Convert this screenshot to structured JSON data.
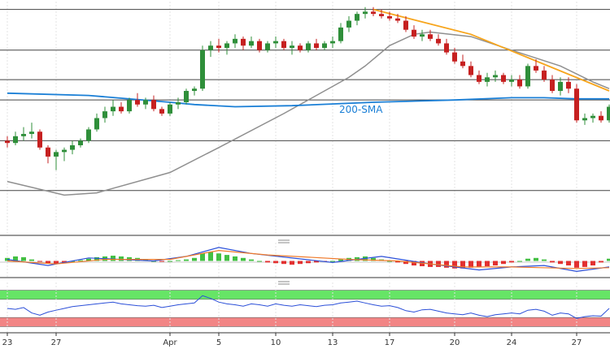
{
  "chart_data": [
    {
      "type": "candlestick",
      "panel": "price",
      "x_ticks": [
        "23",
        "27",
        "Apr",
        "5",
        "10",
        "13",
        "17",
        "20",
        "24",
        "27"
      ],
      "y_range": [
        0,
        100
      ],
      "horizontal_levels": [
        98,
        80,
        67,
        58,
        40,
        18
      ],
      "ohlc": [
        [
          40,
          42,
          37,
          39
        ],
        [
          39,
          44,
          38,
          42
        ],
        [
          42,
          46,
          40,
          43
        ],
        [
          43,
          48,
          41,
          44
        ],
        [
          44,
          45,
          36,
          37
        ],
        [
          37,
          38,
          30,
          33
        ],
        [
          33,
          36,
          27,
          35
        ],
        [
          35,
          37,
          31,
          36
        ],
        [
          36,
          40,
          34,
          38
        ],
        [
          38,
          41,
          37,
          40
        ],
        [
          40,
          46,
          39,
          45
        ],
        [
          45,
          52,
          44,
          50
        ],
        [
          50,
          55,
          48,
          53
        ],
        [
          53,
          58,
          51,
          55
        ],
        [
          55,
          57,
          52,
          53
        ],
        [
          53,
          59,
          52,
          58
        ],
        [
          58,
          61,
          55,
          56
        ],
        [
          56,
          59,
          54,
          58
        ],
        [
          58,
          60,
          53,
          54
        ],
        [
          54,
          55,
          51,
          52
        ],
        [
          52,
          57,
          51,
          56
        ],
        [
          56,
          59,
          54,
          57
        ],
        [
          57,
          63,
          56,
          62
        ],
        [
          62,
          64,
          60,
          63
        ],
        [
          63,
          82,
          62,
          80
        ],
        [
          80,
          84,
          77,
          82
        ],
        [
          82,
          85,
          79,
          81
        ],
        [
          81,
          84,
          78,
          83
        ],
        [
          83,
          87,
          81,
          85
        ],
        [
          85,
          86,
          80,
          82
        ],
        [
          82,
          86,
          81,
          84
        ],
        [
          84,
          85,
          79,
          80
        ],
        [
          80,
          84,
          79,
          83
        ],
        [
          83,
          86,
          81,
          84
        ],
        [
          84,
          85,
          80,
          81
        ],
        [
          81,
          84,
          78,
          82
        ],
        [
          82,
          83,
          79,
          80
        ],
        [
          80,
          84,
          79,
          83
        ],
        [
          83,
          85,
          80,
          81
        ],
        [
          81,
          84,
          80,
          83
        ],
        [
          83,
          86,
          81,
          84
        ],
        [
          84,
          92,
          83,
          90
        ],
        [
          90,
          95,
          88,
          93
        ],
        [
          93,
          97,
          91,
          96
        ],
        [
          96,
          99,
          94,
          97
        ],
        [
          97,
          99,
          95,
          96
        ],
        [
          96,
          98,
          94,
          95
        ],
        [
          95,
          97,
          93,
          94
        ],
        [
          94,
          96,
          92,
          93
        ],
        [
          93,
          95,
          88,
          89
        ],
        [
          89,
          91,
          85,
          86
        ],
        [
          86,
          89,
          84,
          87
        ],
        [
          87,
          89,
          84,
          85
        ],
        [
          85,
          87,
          82,
          83
        ],
        [
          83,
          85,
          78,
          79
        ],
        [
          79,
          81,
          74,
          75
        ],
        [
          75,
          78,
          72,
          73
        ],
        [
          73,
          75,
          68,
          69
        ],
        [
          69,
          71,
          65,
          66
        ],
        [
          66,
          70,
          64,
          68
        ],
        [
          68,
          71,
          66,
          69
        ],
        [
          69,
          70,
          65,
          66
        ],
        [
          66,
          69,
          64,
          67
        ],
        [
          67,
          69,
          63,
          64
        ],
        [
          64,
          74,
          63,
          73
        ],
        [
          73,
          76,
          70,
          71
        ],
        [
          71,
          73,
          66,
          67
        ],
        [
          67,
          69,
          61,
          62
        ],
        [
          62,
          68,
          60,
          66
        ],
        [
          66,
          68,
          61,
          63
        ],
        [
          63,
          65,
          48,
          49
        ],
        [
          49,
          52,
          47,
          50
        ],
        [
          50,
          52,
          48,
          51
        ],
        [
          51,
          53,
          48,
          49
        ],
        [
          49,
          56,
          48,
          55
        ]
      ],
      "sma_label": "200-SMA",
      "sma_200": [
        [
          0,
          61
        ],
        [
          10,
          60
        ],
        [
          20,
          57
        ],
        [
          23,
          56
        ],
        [
          28,
          55
        ],
        [
          35,
          55.5
        ],
        [
          45,
          57
        ],
        [
          55,
          58
        ],
        [
          62,
          59
        ],
        [
          66,
          59
        ],
        [
          70,
          58.5
        ],
        [
          74,
          58.5
        ]
      ],
      "sma_slow": [
        [
          0,
          22
        ],
        [
          7,
          16
        ],
        [
          11,
          17
        ],
        [
          20,
          26
        ],
        [
          26,
          37
        ],
        [
          34,
          52
        ],
        [
          42,
          68
        ],
        [
          44,
          73
        ],
        [
          47,
          82
        ],
        [
          50,
          87
        ],
        [
          52,
          88
        ],
        [
          57,
          86
        ],
        [
          62,
          80
        ],
        [
          68,
          73
        ],
        [
          72,
          66
        ],
        [
          74,
          63
        ]
      ],
      "trendline": [
        [
          45,
          98
        ],
        [
          57,
          87
        ],
        [
          74,
          62
        ]
      ]
    },
    {
      "type": "histogram+line",
      "panel": "macd",
      "y_range": [
        -1,
        1
      ],
      "histogram": [
        0.2,
        0.3,
        0.25,
        0.1,
        -0.05,
        -0.15,
        -0.2,
        -0.1,
        0,
        0.05,
        0.15,
        0.25,
        0.3,
        0.35,
        0.3,
        0.25,
        0.2,
        0.1,
        0,
        -0.05,
        0,
        0.05,
        0.1,
        0.2,
        0.5,
        0.6,
        0.5,
        0.4,
        0.3,
        0.2,
        0.1,
        0,
        -0.1,
        -0.15,
        -0.2,
        -0.25,
        -0.2,
        -0.15,
        -0.1,
        -0.05,
        0,
        0.1,
        0.2,
        0.25,
        0.3,
        0.2,
        0.1,
        0,
        -0.1,
        -0.2,
        -0.3,
        -0.35,
        -0.4,
        -0.4,
        -0.45,
        -0.5,
        -0.5,
        -0.45,
        -0.4,
        -0.35,
        -0.3,
        -0.2,
        -0.1,
        0,
        0.15,
        0.2,
        0.1,
        -0.1,
        -0.2,
        -0.3,
        -0.45,
        -0.4,
        -0.3,
        -0.1,
        0.15
      ],
      "macd_line": [
        [
          0,
          0.1
        ],
        [
          5,
          -0.3
        ],
        [
          10,
          0.2
        ],
        [
          18,
          0
        ],
        [
          22,
          0.3
        ],
        [
          26,
          0.9
        ],
        [
          30,
          0.5
        ],
        [
          40,
          -0.1
        ],
        [
          46,
          0.3
        ],
        [
          52,
          -0.2
        ],
        [
          58,
          -0.6
        ],
        [
          62,
          -0.4
        ],
        [
          66,
          -0.3
        ],
        [
          70,
          -0.7
        ],
        [
          74,
          -0.4
        ]
      ],
      "signal_line": [
        [
          0,
          0
        ],
        [
          6,
          -0.2
        ],
        [
          12,
          0.1
        ],
        [
          20,
          0.1
        ],
        [
          26,
          0.7
        ],
        [
          32,
          0.4
        ],
        [
          42,
          0.1
        ],
        [
          48,
          0
        ],
        [
          56,
          -0.4
        ],
        [
          62,
          -0.4
        ],
        [
          70,
          -0.5
        ],
        [
          74,
          -0.45
        ]
      ]
    },
    {
      "type": "line",
      "panel": "rsi",
      "y_range": [
        0,
        100
      ],
      "bands": [
        [
          70,
          90
        ],
        [
          10,
          30
        ]
      ],
      "values": [
        50,
        48,
        52,
        40,
        35,
        42,
        46,
        50,
        54,
        56,
        58,
        60,
        62,
        64,
        60,
        58,
        56,
        55,
        57,
        52,
        55,
        58,
        60,
        62,
        78,
        72,
        64,
        60,
        58,
        55,
        60,
        58,
        55,
        60,
        57,
        55,
        58,
        56,
        54,
        57,
        58,
        62,
        64,
        66,
        62,
        58,
        55,
        56,
        52,
        45,
        42,
        47,
        48,
        44,
        40,
        38,
        36,
        40,
        35,
        32,
        36,
        38,
        40,
        38,
        46,
        48,
        44,
        35,
        40,
        38,
        28,
        32,
        34,
        33,
        50
      ]
    }
  ]
}
